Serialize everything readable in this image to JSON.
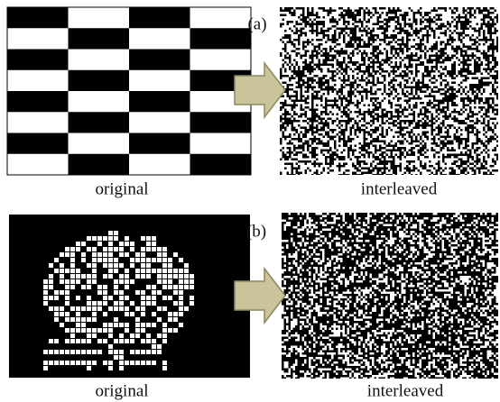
{
  "panels": [
    {
      "tag": "(a)",
      "left_caption": "original",
      "right_caption": "interleaved"
    },
    {
      "tag": "(b)",
      "left_caption": "original",
      "right_caption": "interleaved"
    }
  ]
}
